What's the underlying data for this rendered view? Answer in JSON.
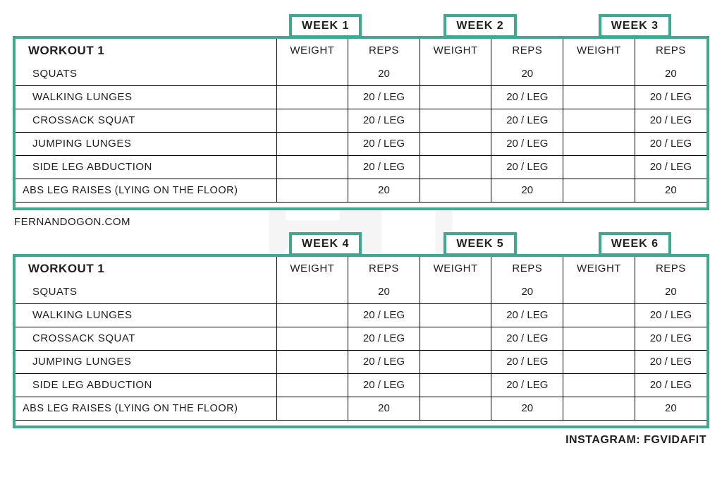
{
  "colors": {
    "accent": "#3fa88f",
    "text": "#202020",
    "border": "#000000",
    "background": "#ffffff",
    "watermark": "#808080"
  },
  "watermark_text": "V I D a F I T",
  "site_label": "FERNANDOGON.COM",
  "instagram_label": "INSTAGRAM: FGVIDAFIT",
  "column_headers": {
    "weight": "WEIGHT",
    "reps": "REPS"
  },
  "blocks": [
    {
      "title": "WORKOUT 1",
      "weeks": [
        "WEEK 1",
        "WEEK 2",
        "WEEK 3"
      ],
      "rows": [
        {
          "name": "SQUATS",
          "reps": [
            "20",
            "20",
            "20"
          ],
          "tight": false
        },
        {
          "name": "WALKING LUNGES",
          "reps": [
            "20 / LEG",
            "20 / LEG",
            "20 / LEG"
          ],
          "tight": false
        },
        {
          "name": "CROSSACK SQUAT",
          "reps": [
            "20 / LEG",
            "20 / LEG",
            "20 / LEG"
          ],
          "tight": false
        },
        {
          "name": "JUMPING LUNGES",
          "reps": [
            "20 / LEG",
            "20 / LEG",
            "20 / LEG"
          ],
          "tight": false
        },
        {
          "name": "SIDE LEG ABDUCTION",
          "reps": [
            "20 / LEG",
            "20 / LEG",
            "20 / LEG"
          ],
          "tight": false
        },
        {
          "name": "ABS LEG RAISES (LYING ON THE FLOOR)",
          "reps": [
            "20",
            "20",
            "20"
          ],
          "tight": true
        }
      ]
    },
    {
      "title": "WORKOUT 1",
      "weeks": [
        "WEEK 4",
        "WEEK 5",
        "WEEK 6"
      ],
      "rows": [
        {
          "name": "SQUATS",
          "reps": [
            "20",
            "20",
            "20"
          ],
          "tight": false
        },
        {
          "name": "WALKING LUNGES",
          "reps": [
            "20 / LEG",
            "20 / LEG",
            "20 / LEG"
          ],
          "tight": false
        },
        {
          "name": "CROSSACK SQUAT",
          "reps": [
            "20 / LEG",
            "20 / LEG",
            "20 / LEG"
          ],
          "tight": false
        },
        {
          "name": "JUMPING LUNGES",
          "reps": [
            "20 / LEG",
            "20 / LEG",
            "20 / LEG"
          ],
          "tight": false
        },
        {
          "name": "SIDE LEG ABDUCTION",
          "reps": [
            "20 / LEG",
            "20 / LEG",
            "20 / LEG"
          ],
          "tight": false
        },
        {
          "name": "ABS LEG RAISES (LYING ON THE FLOOR)",
          "reps": [
            "20",
            "20",
            "20"
          ],
          "tight": true
        }
      ]
    }
  ]
}
